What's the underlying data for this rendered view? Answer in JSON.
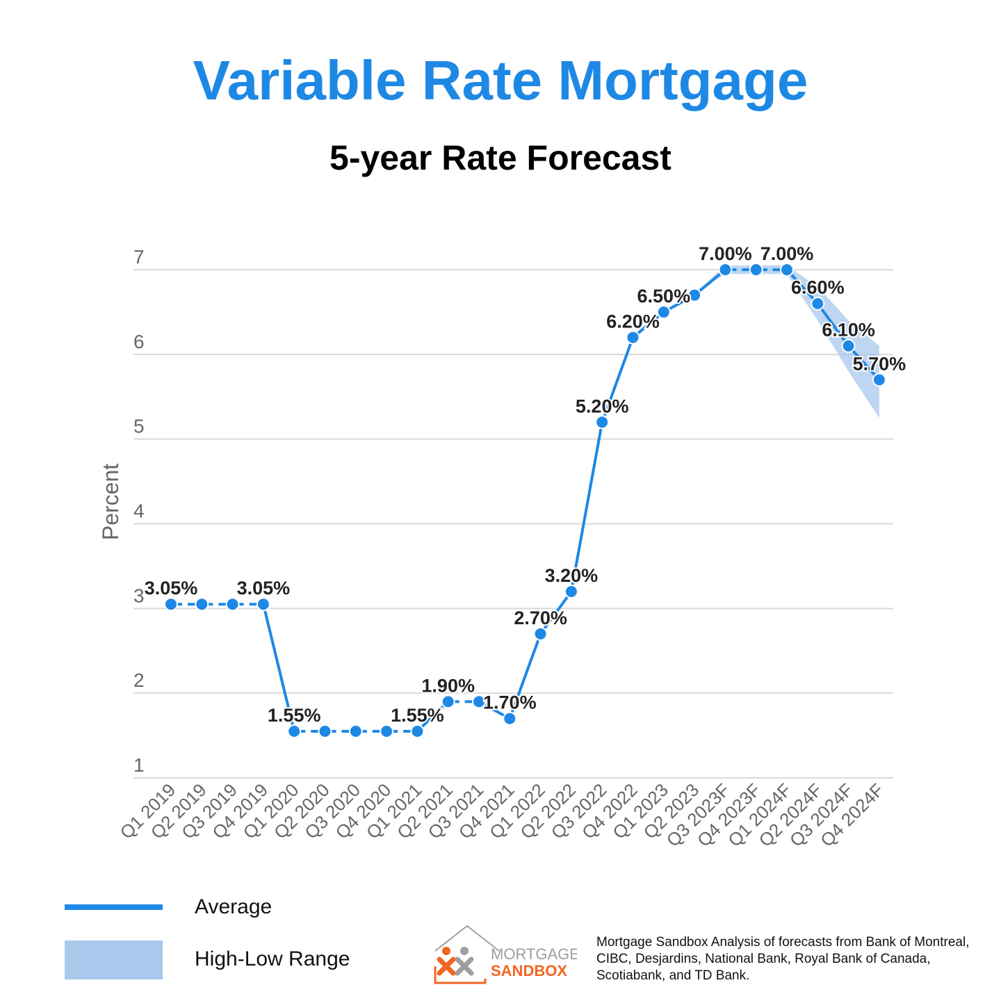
{
  "title": "Variable Rate Mortgage",
  "subtitle": "5-year Rate Forecast",
  "legend": {
    "average_label": "Average",
    "range_label": "High-Low Range"
  },
  "logo": {
    "line1": "MORTGAGE",
    "line2": "SANDBOX"
  },
  "source_note": "Mortgage Sandbox Analysis of forecasts from Bank of Montreal, CIBC, Desjardins, National Bank, Royal Bank of Canada, Scotiabank, and TD Bank.",
  "colors": {
    "title": "#1e88e5",
    "line": "#1e88e5",
    "band": "#a8c8ec",
    "grid": "#d9d9d9",
    "logo_orange": "#f26522",
    "logo_gray": "#9e9e9e"
  },
  "chart_data": {
    "type": "line",
    "ylabel": "Percent",
    "xlabel": "",
    "ylim": [
      1,
      7
    ],
    "yticks": [
      1,
      2,
      3,
      4,
      5,
      6,
      7
    ],
    "grid": true,
    "categories": [
      "Q1 2019",
      "Q2 2019",
      "Q3 2019",
      "Q4 2019",
      "Q1 2020",
      "Q2 2020",
      "Q3 2020",
      "Q4 2020",
      "Q1 2021",
      "Q2 2021",
      "Q3 2021",
      "Q4 2021",
      "Q1 2022",
      "Q2 2022",
      "Q3 2022",
      "Q4 2022",
      "Q1 2023",
      "Q2 2023",
      "Q3 2023F",
      "Q4 2023F",
      "Q1 2024F",
      "Q2 2024F",
      "Q3 2024F",
      "Q4 2024F"
    ],
    "series": [
      {
        "name": "Average",
        "values": [
          3.05,
          3.05,
          3.05,
          3.05,
          1.55,
          1.55,
          1.55,
          1.55,
          1.55,
          1.9,
          1.9,
          1.7,
          2.7,
          3.2,
          5.2,
          6.2,
          6.5,
          6.7,
          7.0,
          7.0,
          7.0,
          6.6,
          6.1,
          5.7
        ],
        "labels": [
          "3.05%",
          "",
          "",
          "3.05%",
          "1.55%",
          "",
          "",
          "",
          "1.55%",
          "1.90%",
          "",
          "1.70%",
          "2.70%",
          "3.20%",
          "5.20%",
          "6.20%",
          "6.50%",
          "",
          "7.00%",
          "",
          "7.00%",
          "6.60%",
          "6.10%",
          "5.70%"
        ],
        "dashed_segments": [
          0,
          1,
          2,
          4,
          5,
          6,
          7,
          9,
          18,
          19
        ]
      },
      {
        "name": "High-Low Range",
        "type": "area_range",
        "start_index": 17,
        "high": [
          6.72,
          7.05,
          7.05,
          7.05,
          6.8,
          6.4,
          6.1
        ],
        "low": [
          6.72,
          6.95,
          6.95,
          6.95,
          6.4,
          5.8,
          5.25
        ]
      }
    ]
  }
}
